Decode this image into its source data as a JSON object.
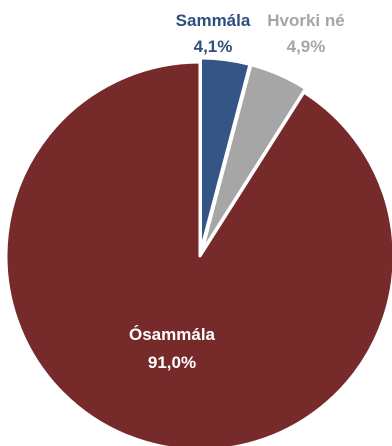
{
  "chart_data": {
    "type": "pie",
    "slices": [
      {
        "label": "Sammála",
        "value": 4.1,
        "value_label": "4,1%",
        "color": "#355586",
        "label_color": "#2f4f80"
      },
      {
        "label": "Hvorki né",
        "value": 4.9,
        "value_label": "4,9%",
        "color": "#a6a6a6",
        "label_color": "#a6a6a6"
      },
      {
        "label": "Ósammála",
        "value": 91.0,
        "value_label": "91,0%",
        "color": "#772a2a",
        "label_color": "#ffffff"
      }
    ],
    "start_angle_deg": 0,
    "direction": "clockwise"
  }
}
